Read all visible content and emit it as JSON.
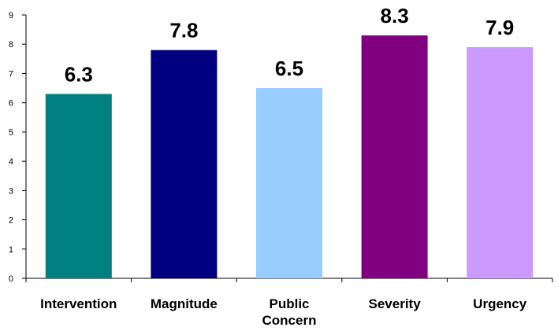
{
  "chart_data": {
    "type": "bar",
    "title": "",
    "xlabel": "",
    "ylabel": "",
    "ylim": [
      0,
      9
    ],
    "yticks": [
      0,
      1,
      2,
      3,
      4,
      5,
      6,
      7,
      8,
      9
    ],
    "grid": false,
    "legend": "none",
    "categories": [
      [
        "Intervention"
      ],
      [
        "Magnitude"
      ],
      [
        "Public",
        "Concern"
      ],
      [
        "Severity"
      ],
      [
        "Urgency"
      ]
    ],
    "values": [
      6.3,
      7.8,
      6.5,
      8.3,
      7.9
    ],
    "data_labels": [
      "6.3",
      "7.8",
      "6.5",
      "8.3",
      "7.9"
    ],
    "colors": [
      "#008080",
      "#000080",
      "#99CCFF",
      "#800080",
      "#CC99FF"
    ]
  }
}
